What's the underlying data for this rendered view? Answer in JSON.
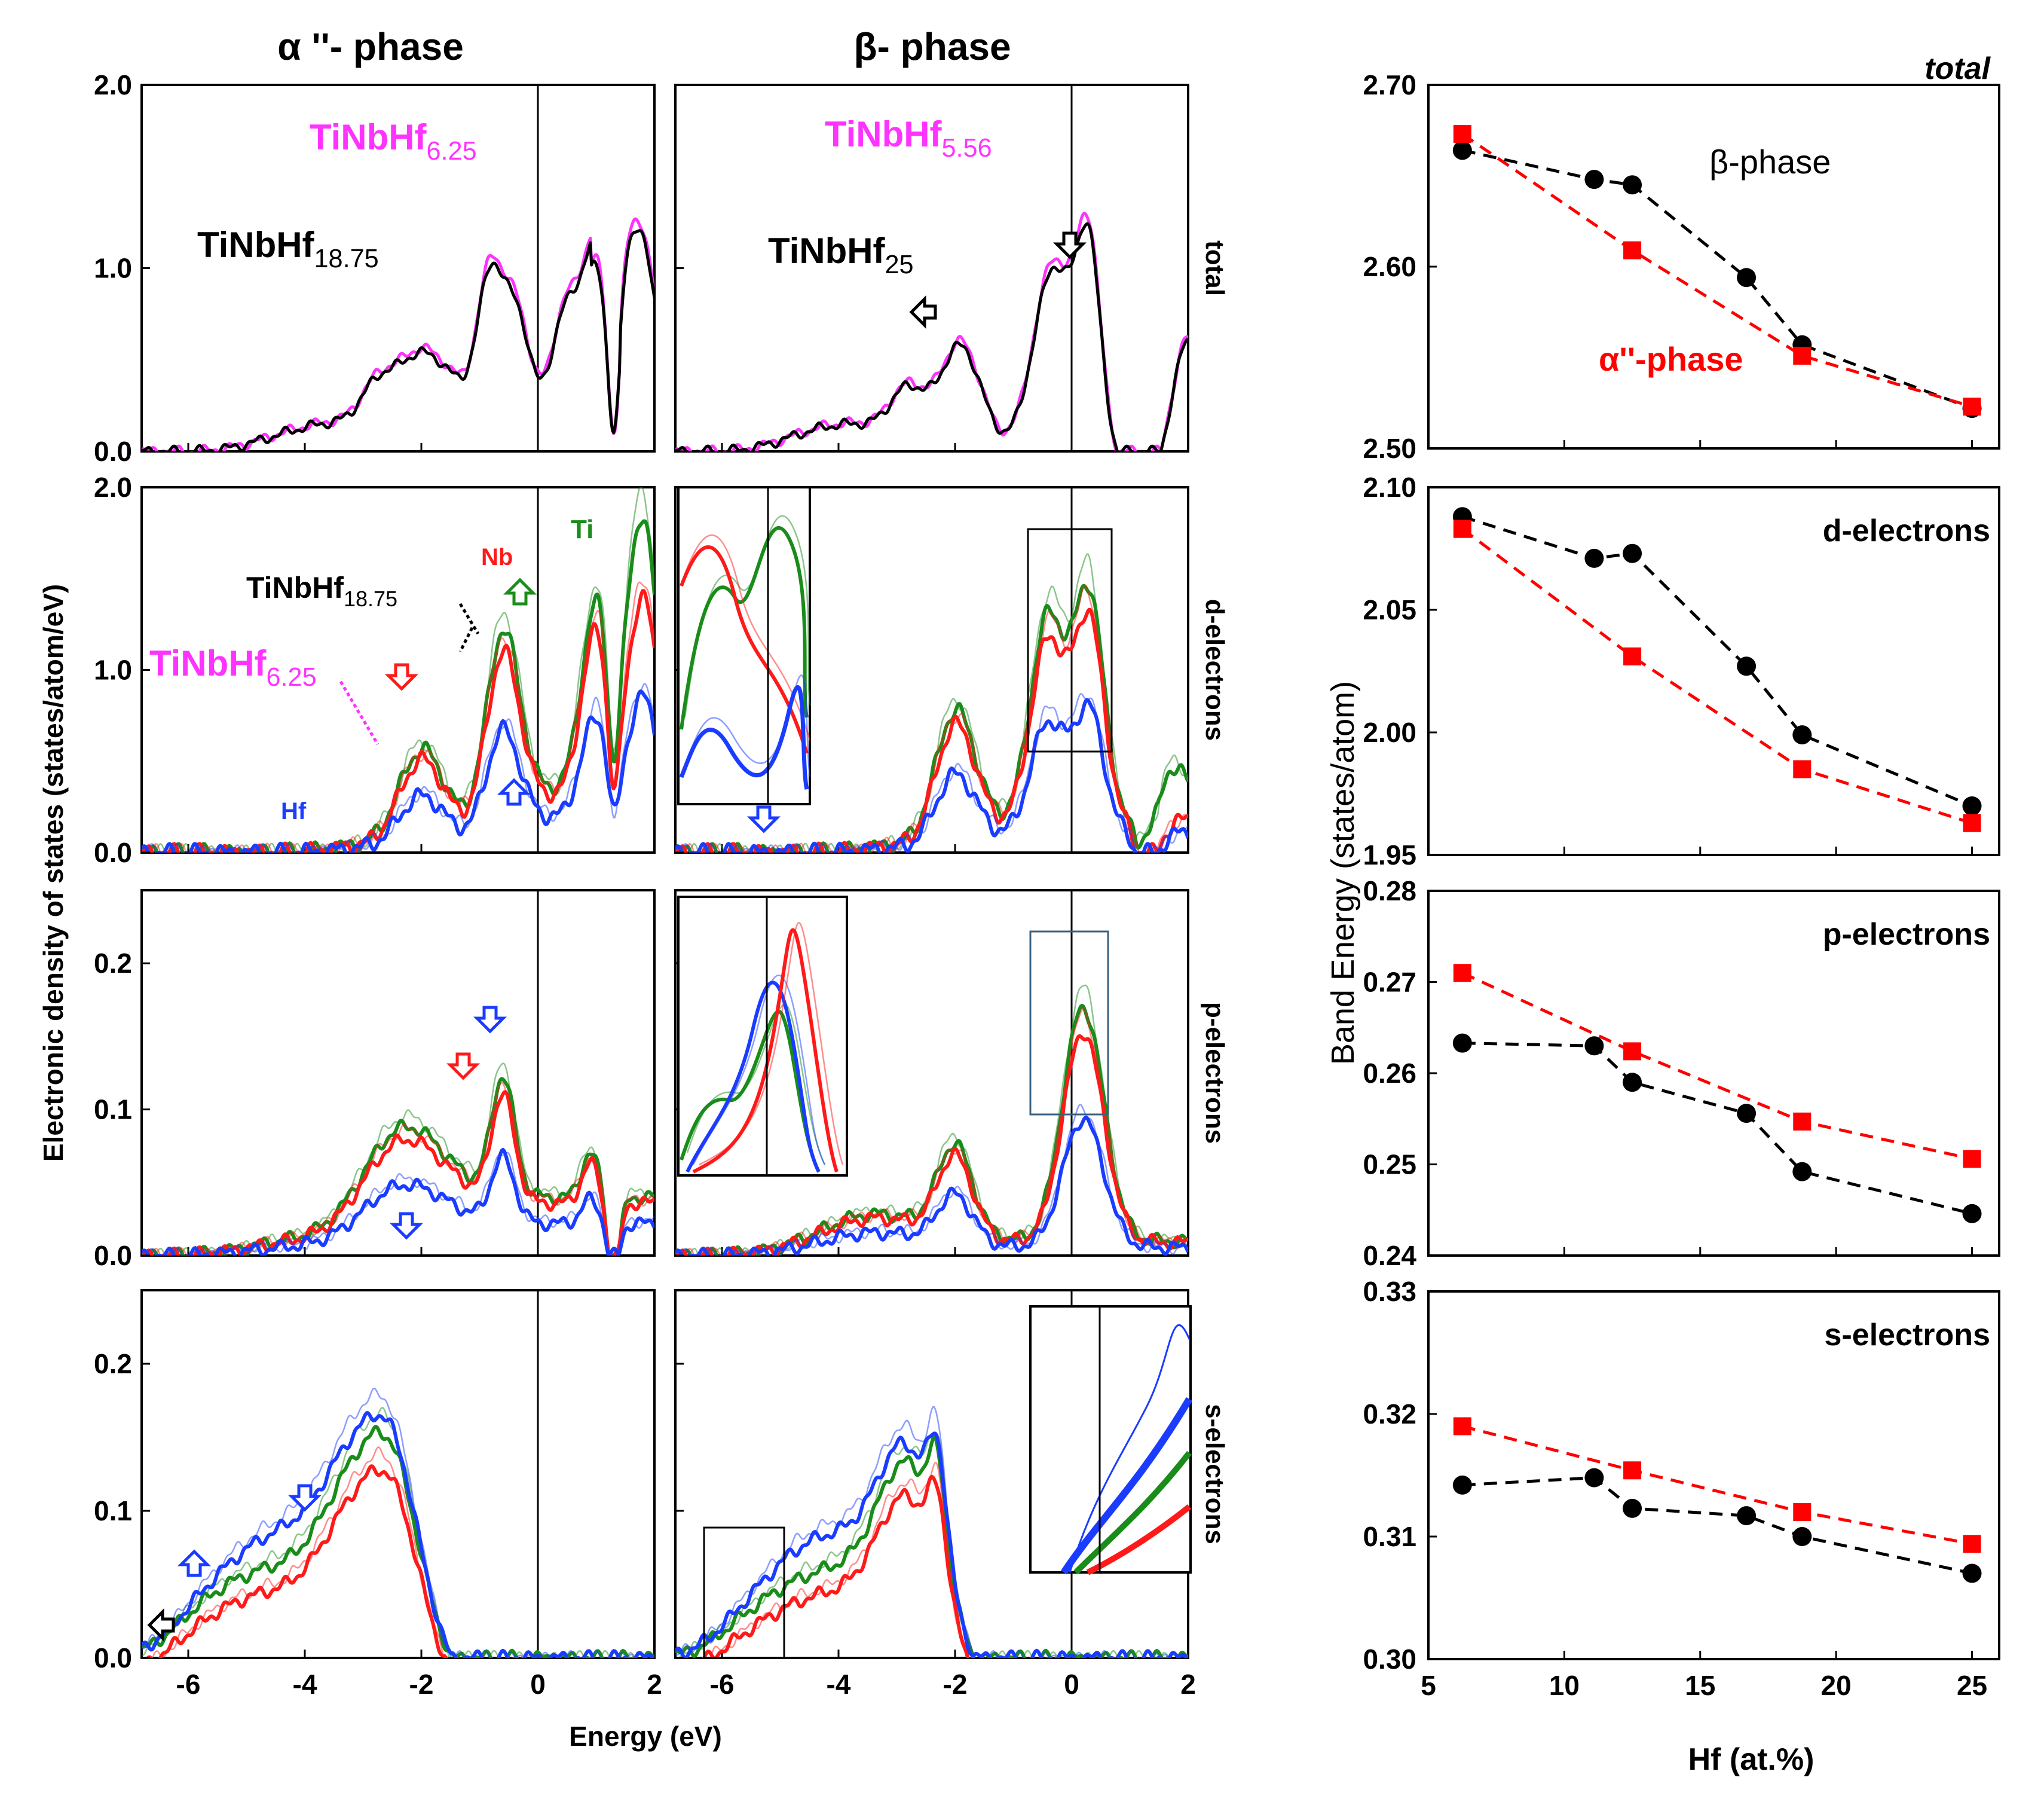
{
  "colors": {
    "ti": "#1a8c1a",
    "nb": "#ff1a1a",
    "hf": "#1a3cff",
    "magenta": "#ff33ff",
    "black": "#000000",
    "beta_marker": "#000000",
    "alpha_marker": "#ff0000"
  },
  "titles": {
    "alpha": "α ''- phase",
    "beta": "β- phase"
  },
  "row_labels": [
    "total",
    "d-electrons",
    "p-electrons",
    "s-electrons"
  ],
  "dos": {
    "ylabel": "Electronic density of states (states/atom/eV)",
    "xlabel": "Energy (eV)",
    "x_ticks": [
      "-6",
      "-4",
      "-2",
      "0",
      "2"
    ],
    "y_ticks": [
      [
        "0.0",
        "1.0",
        "2.0"
      ],
      [
        "0.0",
        "1.0",
        "2.0"
      ],
      [
        "0.0",
        "0.1",
        "0.2"
      ],
      [
        "0.0",
        "0.1",
        "0.2"
      ]
    ],
    "labels": {
      "alpha_top_magenta": {
        "base": "TiNbHf",
        "sub": "6.25"
      },
      "alpha_top_black": {
        "base": "TiNbHf",
        "sub": "18.75"
      },
      "beta_top_magenta": {
        "base": "TiNbHf",
        "sub": "5.56"
      },
      "beta_top_black": {
        "base": "TiNbHf",
        "sub": "25"
      },
      "alpha_d_black": {
        "base": "TiNbHf",
        "sub": "18.75"
      },
      "alpha_d_magenta": {
        "base": "TiNbHf",
        "sub": "6.25"
      },
      "nb": "Nb",
      "ti": "Ti",
      "hf": "Hf"
    }
  },
  "chart_data": [
    {
      "type": "line",
      "title": "total",
      "xlabel": "Hf (at.%)",
      "ylabel": "Band Energy (states/atom)",
      "ylim": [
        2.5,
        2.7
      ],
      "y_ticks": [
        "2.50",
        "2.60",
        "2.70"
      ],
      "series": [
        {
          "name": "β-phase",
          "x": [
            6.25,
            11.1,
            12.5,
            16.7,
            18.75,
            25
          ],
          "values": [
            2.664,
            2.648,
            2.645,
            2.594,
            2.557,
            2.522
          ]
        },
        {
          "name": "α''-phase",
          "x": [
            6.25,
            12.5,
            18.75,
            25
          ],
          "values": [
            2.673,
            2.609,
            2.551,
            2.523
          ]
        }
      ],
      "annotations": [
        "β-phase",
        "α''-phase"
      ]
    },
    {
      "type": "line",
      "title": "d-electrons",
      "ylim": [
        1.95,
        2.1
      ],
      "y_ticks": [
        "1.95",
        "2.00",
        "2.05",
        "2.10"
      ],
      "series": [
        {
          "name": "β-phase",
          "x": [
            6.25,
            11.1,
            12.5,
            16.7,
            18.75,
            25
          ],
          "values": [
            2.088,
            2.071,
            2.073,
            2.027,
            1.999,
            1.97
          ]
        },
        {
          "name": "α''-phase",
          "x": [
            6.25,
            12.5,
            18.75,
            25
          ],
          "values": [
            2.083,
            2.031,
            1.985,
            1.963
          ]
        }
      ]
    },
    {
      "type": "line",
      "title": "p-electrons",
      "ylim": [
        0.24,
        0.28
      ],
      "y_ticks": [
        "0.24",
        "0.25",
        "0.26",
        "0.27",
        "0.28"
      ],
      "series": [
        {
          "name": "β-phase",
          "x": [
            6.25,
            11.1,
            12.5,
            16.7,
            18.75,
            25
          ],
          "values": [
            0.2633,
            0.263,
            0.259,
            0.2556,
            0.2492,
            0.2446
          ]
        },
        {
          "name": "α''-phase",
          "x": [
            6.25,
            12.5,
            18.75,
            25
          ],
          "values": [
            0.271,
            0.2624,
            0.2547,
            0.2506
          ]
        }
      ]
    },
    {
      "type": "line",
      "title": "s-electrons",
      "xlabel": "Hf (at.%)",
      "x_ticks": [
        "5",
        "10",
        "15",
        "20",
        "25"
      ],
      "ylim": [
        0.3,
        0.33
      ],
      "y_ticks": [
        "0.30",
        "0.31",
        "0.32",
        "0.33"
      ],
      "series": [
        {
          "name": "β-phase",
          "x": [
            6.25,
            11.1,
            12.5,
            16.7,
            18.75,
            25
          ],
          "values": [
            0.3142,
            0.3148,
            0.3123,
            0.3117,
            0.31,
            0.307
          ]
        },
        {
          "name": "α''-phase",
          "x": [
            6.25,
            12.5,
            18.75,
            25
          ],
          "values": [
            0.319,
            0.3154,
            0.312,
            0.3094
          ]
        }
      ]
    }
  ]
}
